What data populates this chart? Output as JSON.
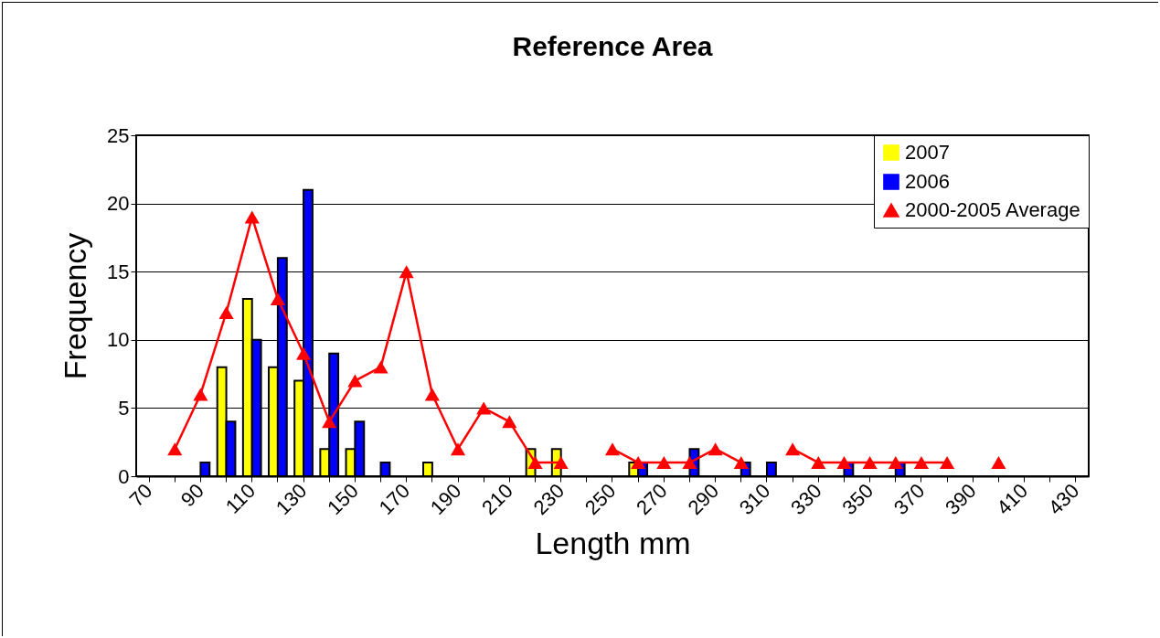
{
  "chart_data": {
    "type": "bar",
    "title": "Reference Area",
    "xlabel": "Length mm",
    "ylabel": "Frequency",
    "categories": [
      "70",
      null,
      "90",
      null,
      "110",
      null,
      "130",
      null,
      "150",
      null,
      "170",
      null,
      "190",
      null,
      "210",
      null,
      "230",
      null,
      "250",
      null,
      "270",
      null,
      "290",
      null,
      "310",
      null,
      "330",
      null,
      "350",
      null,
      "370",
      null,
      "390",
      null,
      "410",
      null,
      "430"
    ],
    "series": [
      {
        "name": "2007",
        "color": "#ffff00",
        "values": [
          null,
          null,
          null,
          8,
          13,
          8,
          7,
          2,
          2,
          null,
          null,
          1,
          null,
          null,
          null,
          2,
          2,
          null,
          null,
          1,
          null,
          null,
          null,
          null,
          null,
          null,
          null,
          null,
          null,
          null,
          null,
          null,
          null,
          null,
          null,
          null,
          null
        ]
      },
      {
        "name": "2006",
        "color": "#0000ff",
        "values": [
          null,
          null,
          1,
          4,
          10,
          16,
          21,
          9,
          4,
          1,
          null,
          null,
          null,
          null,
          null,
          null,
          null,
          null,
          null,
          1,
          null,
          2,
          null,
          1,
          1,
          null,
          null,
          1,
          null,
          1,
          null,
          null,
          null,
          null,
          null,
          null,
          null
        ]
      },
      {
        "name": "2000-2005 Average",
        "type": "line",
        "color": "#ff0000",
        "marker": "triangle",
        "values": [
          null,
          2,
          6,
          12,
          19,
          13,
          9,
          4,
          7,
          8,
          15,
          6,
          2,
          5,
          4,
          1,
          1,
          null,
          2,
          1,
          1,
          1,
          2,
          1,
          null,
          2,
          1,
          1,
          1,
          1,
          1,
          1,
          null,
          1,
          null,
          null,
          null
        ]
      }
    ],
    "ylim": [
      0,
      25
    ],
    "yticks": [
      0,
      5,
      10,
      15,
      20,
      25
    ],
    "grid": "y",
    "legend": "top right"
  }
}
